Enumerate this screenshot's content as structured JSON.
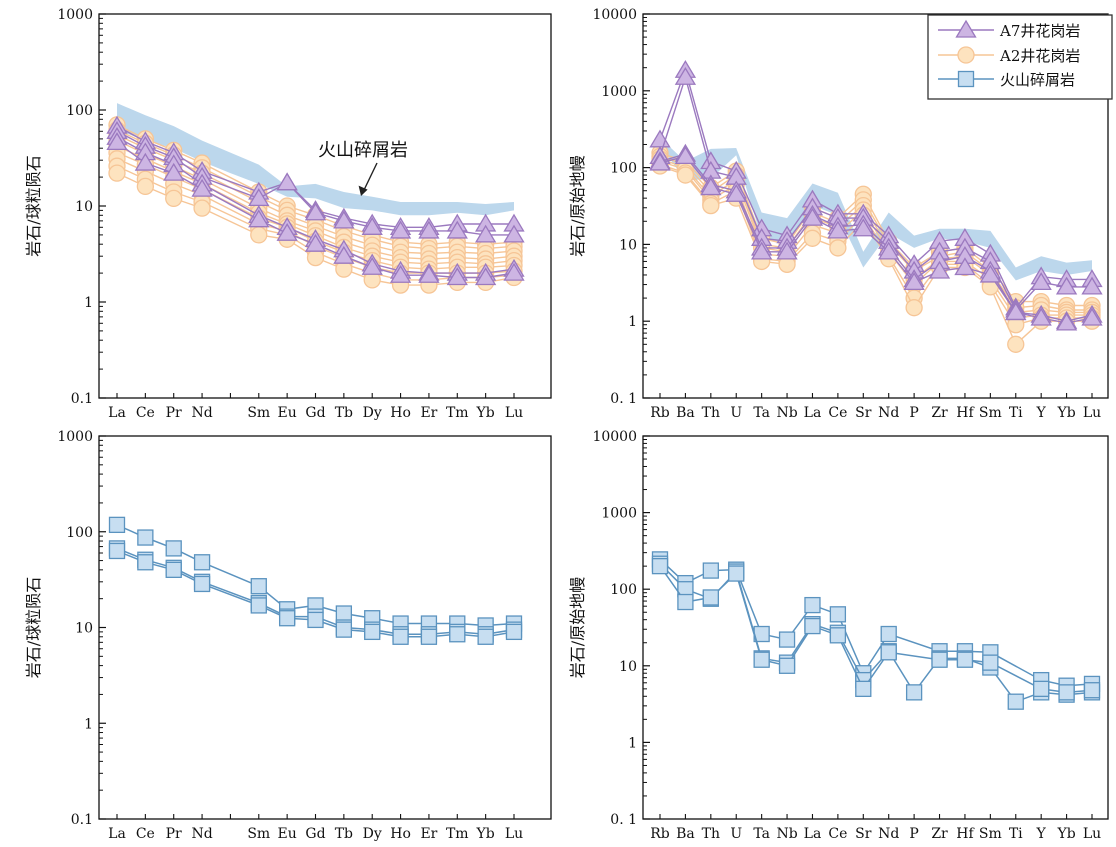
{
  "colors": {
    "a7_line": "#9b79bf",
    "a7_fill": "#cdb5e3",
    "a2_line": "#f6c596",
    "a2_fill": "#fde3bf",
    "vol_line": "#5b93bf",
    "vol_fill": "#c7def1",
    "vol_band": "#bcd7ec"
  },
  "legend": {
    "a7": "A7井花岗岩",
    "a2": "A2井花岗岩",
    "vol": "火山碎屑岩"
  },
  "annotation": "火山碎屑岩",
  "chart_data": [
    {
      "id": "tl",
      "type": "line",
      "yscale": "log",
      "ylim": [
        0.1,
        1000
      ],
      "ylabel": "岩石/球粒陨石",
      "ytick_labels": [
        "0.1",
        "1",
        "10",
        "100",
        "1000"
      ],
      "categories": [
        "La",
        "Ce",
        "Pr",
        "Nd",
        "",
        "Sm",
        "Eu",
        "Gd",
        "Tb",
        "Dy",
        "Ho",
        "Er",
        "Tm",
        "Yb",
        "Lu"
      ],
      "band": {
        "name": "火山碎屑岩",
        "upper": [
          118,
          88,
          68,
          48,
          36,
          27,
          16,
          17,
          14,
          12.5,
          11,
          11,
          11,
          10.5,
          11
        ],
        "lower": [
          62,
          48,
          40,
          29,
          22,
          17,
          12.5,
          12,
          9.5,
          9,
          8,
          8,
          8.5,
          8,
          9
        ]
      },
      "series": [
        {
          "group": "a2",
          "values": [
            70,
            50,
            38,
            28,
            null,
            14,
            10,
            8,
            6.2,
            5,
            4.2,
            4,
            4.2,
            4,
            4.2
          ]
        },
        {
          "group": "a2",
          "values": [
            62,
            45,
            34,
            25,
            null,
            12.5,
            9,
            7.2,
            5.5,
            4.5,
            3.8,
            3.6,
            3.8,
            3.6,
            3.8
          ]
        },
        {
          "group": "a2",
          "values": [
            55,
            40,
            30,
            22,
            null,
            11,
            8,
            6.2,
            4.8,
            3.9,
            3.3,
            3.2,
            3.3,
            3.2,
            3.4
          ]
        },
        {
          "group": "a2",
          "values": [
            48,
            35,
            26,
            19,
            null,
            9.5,
            7,
            5.5,
            4.2,
            3.4,
            2.9,
            2.8,
            2.9,
            2.8,
            3
          ]
        },
        {
          "group": "a2",
          "values": [
            42,
            31,
            23,
            17,
            null,
            8.5,
            6.5,
            4.9,
            3.7,
            3,
            2.6,
            2.5,
            2.6,
            2.5,
            2.7
          ]
        },
        {
          "group": "a2",
          "values": [
            36,
            27,
            20,
            15,
            null,
            7.5,
            6,
            4.3,
            3.3,
            2.7,
            2.3,
            2.2,
            2.3,
            2.3,
            2.4
          ]
        },
        {
          "group": "a2",
          "values": [
            31,
            23,
            17,
            13,
            null,
            6.5,
            5.5,
            3.8,
            2.9,
            2.3,
            2,
            2,
            2,
            2,
            2.1
          ]
        },
        {
          "group": "a2",
          "values": [
            26,
            19,
            14,
            11,
            null,
            5.8,
            5,
            3.3,
            2.5,
            2,
            1.7,
            1.7,
            1.8,
            1.8,
            1.9
          ]
        },
        {
          "group": "a2",
          "values": [
            22,
            16,
            12,
            9.5,
            null,
            5,
            4.5,
            2.9,
            2.2,
            1.7,
            1.5,
            1.5,
            1.6,
            1.6,
            1.8
          ]
        },
        {
          "group": "a7",
          "values": [
            68,
            47,
            36,
            23,
            null,
            14,
            17.5,
            9,
            7.5,
            6.5,
            6,
            6,
            6.5,
            6.5,
            6.5
          ]
        },
        {
          "group": "a7",
          "values": [
            60,
            42,
            32,
            20,
            null,
            12,
            17.5,
            8.5,
            7,
            6,
            5.5,
            5.5,
            5.5,
            5,
            5
          ]
        },
        {
          "group": "a7",
          "values": [
            52,
            36,
            27,
            17,
            null,
            8,
            6,
            4.5,
            3.5,
            2.5,
            2.1,
            2,
            2,
            2,
            2.2
          ]
        },
        {
          "group": "a7",
          "values": [
            46,
            28,
            22,
            15,
            null,
            7.2,
            5.2,
            4,
            3,
            2.3,
            1.9,
            1.9,
            1.8,
            1.8,
            2
          ]
        }
      ]
    },
    {
      "id": "tr",
      "type": "line",
      "yscale": "log",
      "ylim": [
        0.1,
        10000
      ],
      "ylabel": "岩石/原始地幔",
      "ytick_labels": [
        "0. 1",
        "1",
        "10",
        "100",
        "1000",
        "10000"
      ],
      "categories": [
        "Rb",
        "Ba",
        "Th",
        "U",
        "Ta",
        "Nb",
        "La",
        "Ce",
        "Sr",
        "Nd",
        "P",
        "Zr",
        "Hf",
        "Sm",
        "Ti",
        "Y",
        "Yb",
        "Lu"
      ],
      "band": {
        "name": "火山碎屑岩",
        "upper": [
          245,
          120,
          175,
          180,
          26,
          22,
          62,
          47,
          8,
          26,
          13,
          16,
          16,
          15,
          5,
          7,
          5.8,
          6.2
        ],
        "lower": [
          195,
          68,
          72,
          145,
          12,
          10,
          32,
          24,
          5,
          14,
          9,
          12,
          11,
          9,
          3.4,
          4.5,
          4,
          4.5
        ]
      },
      "series": [
        {
          "group": "a2",
          "values": [
            155,
            120,
            55,
            90,
            12,
            10,
            30,
            22,
            45,
            11,
            5,
            8,
            9,
            5,
            1.8,
            1.8,
            1.6,
            1.6
          ]
        },
        {
          "group": "a2",
          "values": [
            140,
            110,
            48,
            80,
            10,
            9,
            26,
            19,
            38,
            10,
            4.5,
            7,
            8,
            4.5,
            1.5,
            1.6,
            1.4,
            1.4
          ]
        },
        {
          "group": "a2",
          "values": [
            130,
            100,
            42,
            70,
            9,
            8,
            22,
            17,
            32,
            9,
            3.5,
            6.5,
            7,
            4,
            1.3,
            1.4,
            1.3,
            1.3
          ]
        },
        {
          "group": "a2",
          "values": [
            120,
            95,
            38,
            60,
            7.5,
            7,
            18,
            14,
            28,
            8,
            3,
            6,
            6,
            3.5,
            1.1,
            1.2,
            1.2,
            1.2
          ]
        },
        {
          "group": "a2",
          "values": [
            110,
            85,
            34,
            50,
            6.5,
            6,
            14,
            11,
            24,
            7,
            2,
            5.5,
            5.5,
            3,
            0.9,
            1.1,
            1.1,
            1.1
          ]
        },
        {
          "group": "a2",
          "values": [
            105,
            80,
            32,
            40,
            6,
            5.5,
            12,
            9,
            20,
            6.5,
            1.5,
            5,
            5,
            2.8,
            0.5,
            1,
            1,
            1
          ]
        },
        {
          "group": "a7",
          "values": [
            230,
            1850,
            120,
            90,
            16,
            13,
            38,
            25,
            25,
            13,
            5.5,
            11,
            12,
            7.5,
            1.5,
            3.8,
            3.5,
            3.5
          ]
        },
        {
          "group": "a7",
          "values": [
            140,
            1500,
            90,
            75,
            12,
            11,
            30,
            22,
            22,
            11,
            4.5,
            8,
            9,
            6,
            1.4,
            3.2,
            2.8,
            2.8
          ]
        },
        {
          "group": "a7",
          "values": [
            120,
            150,
            60,
            50,
            9,
            9,
            24,
            17,
            18,
            9,
            3.5,
            6,
            7,
            4.5,
            1.3,
            1.2,
            1,
            1.2
          ]
        },
        {
          "group": "a7",
          "values": [
            115,
            140,
            55,
            45,
            8,
            8,
            22,
            15,
            16,
            8,
            3.2,
            4.5,
            5,
            4,
            1.3,
            1.1,
            0.95,
            1.1
          ]
        }
      ]
    },
    {
      "id": "bl",
      "type": "line",
      "yscale": "log",
      "ylim": [
        0.1,
        1000
      ],
      "ylabel": "岩石/球粒陨石",
      "ytick_labels": [
        "0.1",
        "1",
        "10",
        "100",
        "1000"
      ],
      "categories": [
        "La",
        "Ce",
        "Pr",
        "Nd",
        "",
        "Sm",
        "Eu",
        "Gd",
        "Tb",
        "Dy",
        "Ho",
        "Er",
        "Tm",
        "Yb",
        "Lu"
      ],
      "series": [
        {
          "group": "vol",
          "values": [
            118,
            87,
            67,
            48,
            null,
            27,
            15.5,
            17,
            14,
            12.5,
            11,
            11,
            11,
            10.5,
            11
          ]
        },
        {
          "group": "vol",
          "values": [
            67,
            51,
            42,
            30,
            null,
            18,
            13,
            13,
            10,
            9.5,
            8.5,
            8.5,
            9,
            8.5,
            9.5
          ]
        },
        {
          "group": "vol",
          "values": [
            63,
            48,
            40,
            28.5,
            null,
            17,
            12.5,
            12,
            9.5,
            9,
            8,
            8,
            8.5,
            8,
            9
          ]
        }
      ]
    },
    {
      "id": "br",
      "type": "line",
      "yscale": "log",
      "ylim": [
        0.1,
        10000
      ],
      "ylabel": "岩石/原始地幔",
      "ytick_labels": [
        "0. 1",
        "1",
        "10",
        "100",
        "1000",
        "10000"
      ],
      "categories": [
        "Rb",
        "Ba",
        "Th",
        "U",
        "Ta",
        "Nb",
        "La",
        "Ce",
        "Sr",
        "Nd",
        "P",
        "Zr",
        "Hf",
        "Sm",
        "Ti",
        "Y",
        "Yb",
        "Lu"
      ],
      "series": [
        {
          "group": "vol",
          "values": [
            245,
            120,
            175,
            180,
            26,
            22,
            62,
            47,
            8,
            26,
            null,
            15.5,
            15.5,
            15,
            null,
            6.5,
            5.5,
            5.8
          ]
        },
        {
          "group": "vol",
          "values": [
            215,
            100,
            75,
            170,
            12.5,
            11,
            35,
            27,
            6.5,
            15.5,
            4.5,
            12.5,
            12.5,
            9.5,
            3.4,
            4.5,
            4.2,
            4.5
          ]
        },
        {
          "group": "vol",
          "values": [
            200,
            68,
            78,
            160,
            12,
            10,
            33,
            25,
            5,
            15,
            null,
            12,
            12,
            11,
            null,
            5,
            4.5,
            4.8
          ]
        }
      ]
    }
  ]
}
